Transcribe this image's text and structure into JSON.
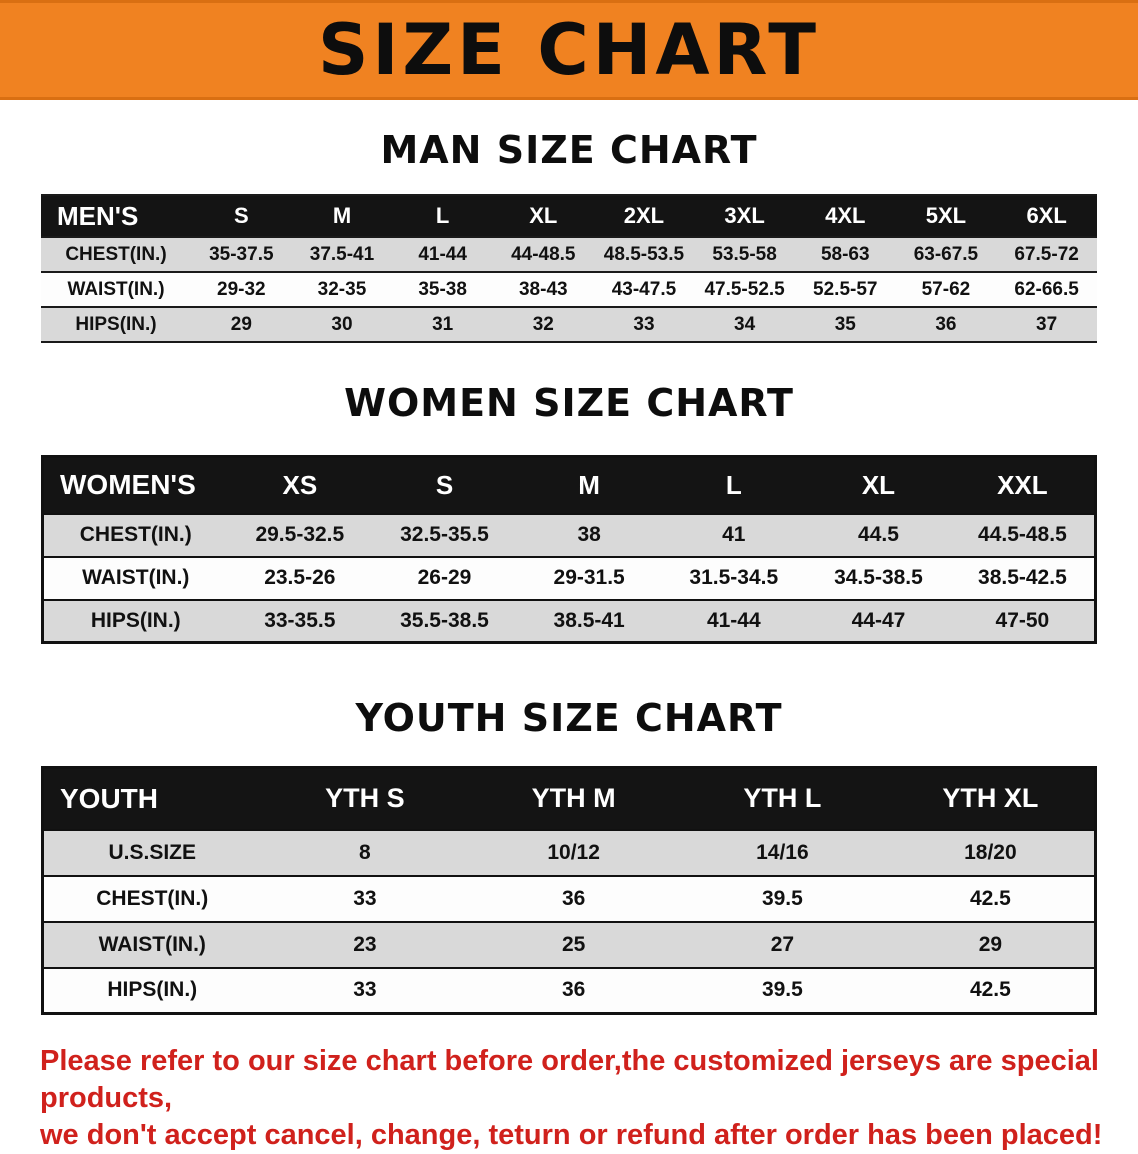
{
  "palette": {
    "banner_bg": "#f08221",
    "header_row_bg": "#141414",
    "stripe_row_bg": "#d9d9d9",
    "disclaimer_red": "#d0211c"
  },
  "banner": {
    "title": "SIZE CHART"
  },
  "sections": [
    {
      "heading": "MAN SIZE CHART",
      "table": {
        "header": [
          "MEN'S",
          "S",
          "M",
          "L",
          "XL",
          "2XL",
          "3XL",
          "4XL",
          "5XL",
          "6XL"
        ],
        "rows": [
          [
            "CHEST(IN.)",
            "35-37.5",
            "37.5-41",
            "41-44",
            "44-48.5",
            "48.5-53.5",
            "53.5-58",
            "58-63",
            "63-67.5",
            "67.5-72"
          ],
          [
            "WAIST(IN.)",
            "29-32",
            "32-35",
            "35-38",
            "38-43",
            "43-47.5",
            "47.5-52.5",
            "52.5-57",
            "57-62",
            "62-66.5"
          ],
          [
            "HIPS(IN.)",
            "29",
            "30",
            "31",
            "32",
            "33",
            "34",
            "35",
            "36",
            "37"
          ]
        ]
      }
    },
    {
      "heading": "WOMEN SIZE CHART",
      "table": {
        "header": [
          "WOMEN'S",
          "XS",
          "S",
          "M",
          "L",
          "XL",
          "XXL"
        ],
        "rows": [
          [
            "CHEST(IN.)",
            "29.5-32.5",
            "32.5-35.5",
            "38",
            "41",
            "44.5",
            "44.5-48.5"
          ],
          [
            "WAIST(IN.)",
            "23.5-26",
            "26-29",
            "29-31.5",
            "31.5-34.5",
            "34.5-38.5",
            "38.5-42.5"
          ],
          [
            "HIPS(IN.)",
            "33-35.5",
            "35.5-38.5",
            "38.5-41",
            "41-44",
            "44-47",
            "47-50"
          ]
        ]
      }
    },
    {
      "heading": "YOUTH SIZE CHART",
      "table": {
        "header": [
          "YOUTH",
          "YTH S",
          "YTH M",
          "YTH L",
          "YTH XL"
        ],
        "rows": [
          [
            "U.S.SIZE",
            "8",
            "10/12",
            "14/16",
            "18/20"
          ],
          [
            "CHEST(IN.)",
            "33",
            "36",
            "39.5",
            "42.5"
          ],
          [
            "WAIST(IN.)",
            "23",
            "25",
            "27",
            "29"
          ],
          [
            "HIPS(IN.)",
            "33",
            "36",
            "39.5",
            "42.5"
          ]
        ]
      }
    }
  ],
  "disclaimer": {
    "lines": [
      "Please refer to our size chart before order,the customized jerseys are special products,",
      "we don't accept cancel, change, teturn or refund after order has been placed!"
    ]
  }
}
